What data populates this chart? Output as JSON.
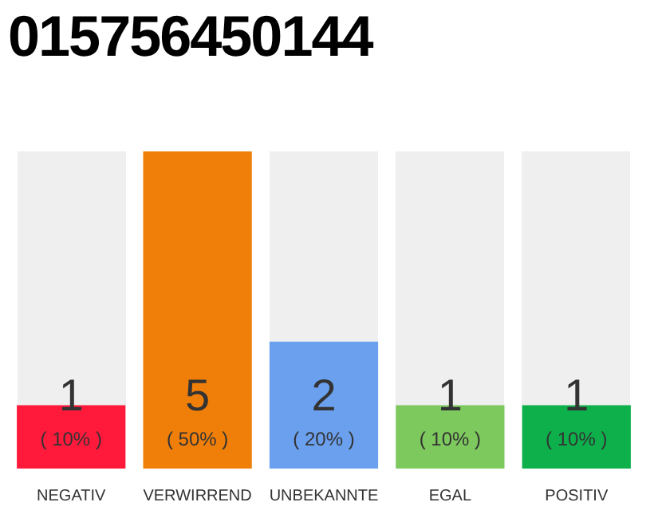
{
  "chart_data": {
    "type": "bar",
    "title": "015756450144",
    "categories": [
      "NEGATIV",
      "VERWIRREND",
      "UNBEKANNTE",
      "EGAL",
      "POSITIV"
    ],
    "values": [
      1,
      5,
      2,
      1,
      1
    ],
    "colors": [
      "#ff1a3c",
      "#f07f09",
      "#6aa0ee",
      "#7dc95e",
      "#0db04b"
    ],
    "data_labels": true,
    "annotations": [
      "( 10% )",
      "( 50% )",
      "( 20% )",
      "( 10% )",
      "( 10% )"
    ],
    "grid": false,
    "legend": false
  }
}
